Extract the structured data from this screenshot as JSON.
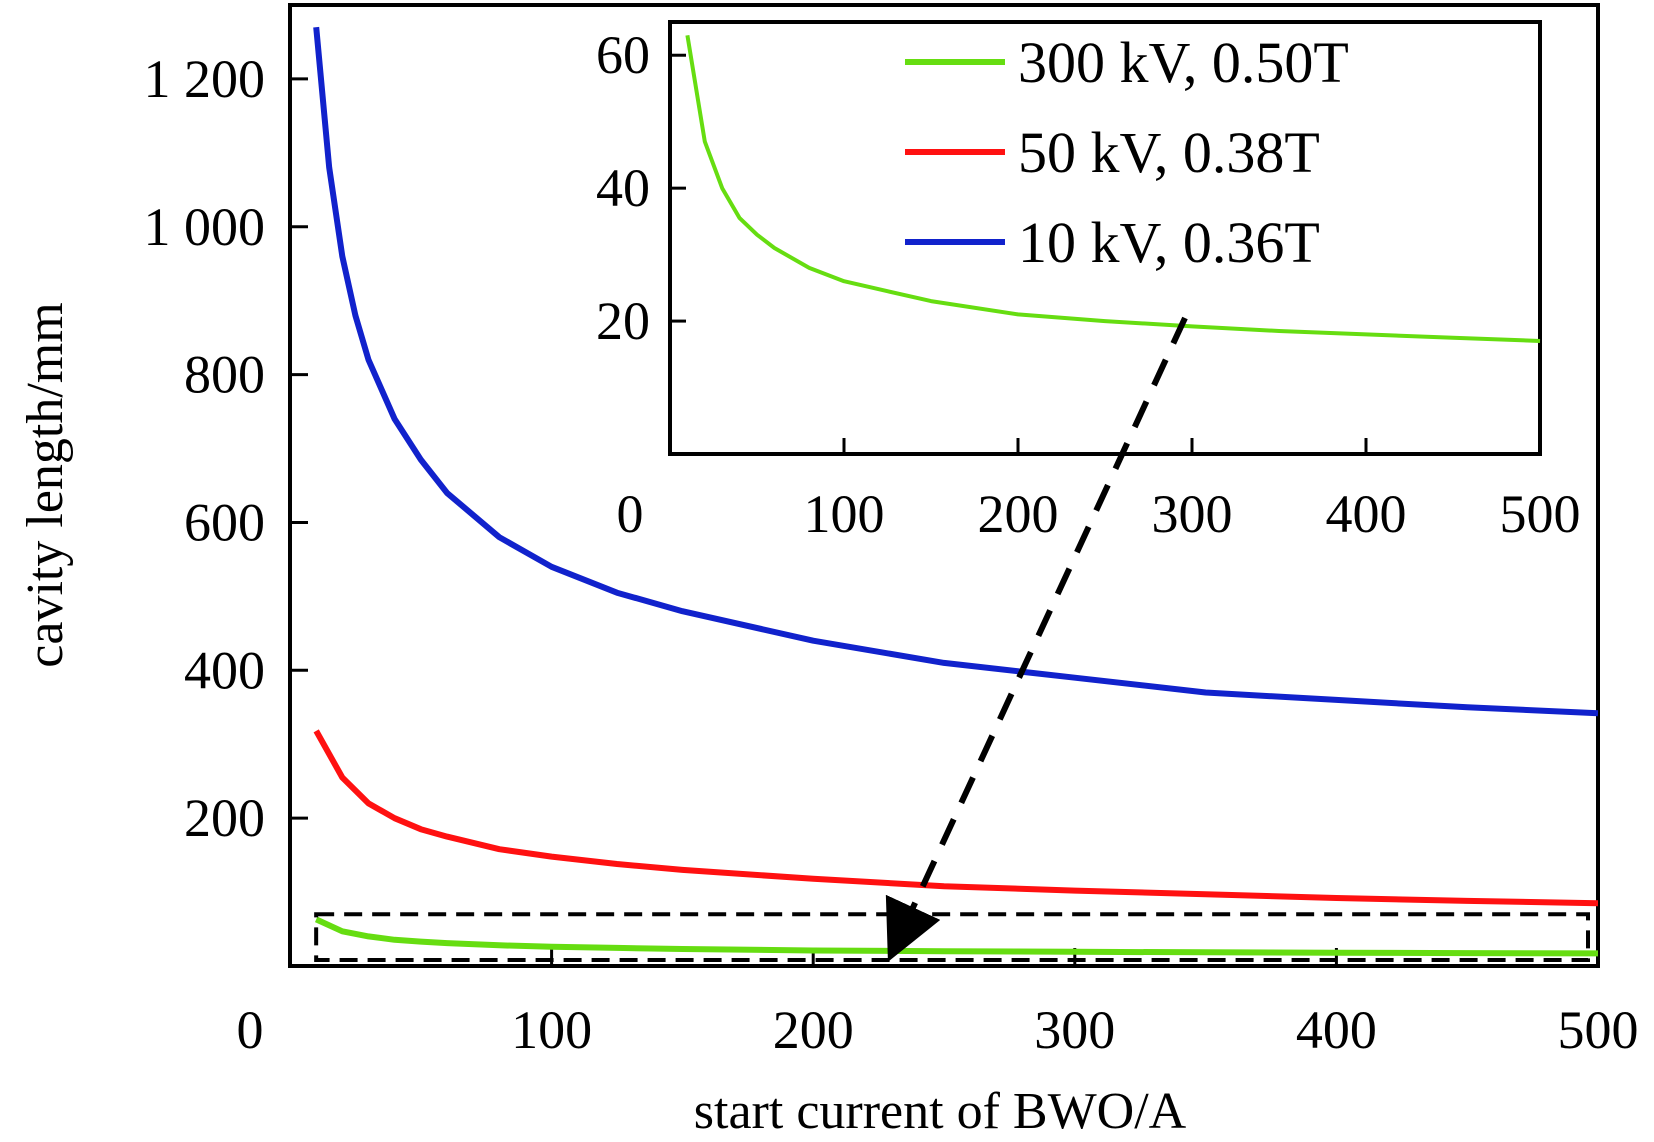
{
  "chart_data": {
    "type": "line",
    "xlabel": "start current of BWO/A",
    "ylabel": "cavity length/mm",
    "xlim": [
      0,
      500
    ],
    "ylim": [
      0,
      1300
    ],
    "x_ticks": [
      0,
      100,
      200,
      300,
      400,
      500
    ],
    "y_ticks": [
      200,
      400,
      600,
      800,
      1000,
      1200
    ],
    "x_tick_labels": [
      "0",
      "100",
      "200",
      "300",
      "400",
      "500"
    ],
    "y_tick_labels": [
      "200",
      "400",
      "600",
      "800",
      "1 000",
      "1 200"
    ],
    "series": [
      {
        "name": "300 kV, 0.50T",
        "color": "#66dd11",
        "x": [
          10,
          20,
          30,
          40,
          50,
          60,
          80,
          100,
          125,
          150,
          200,
          250,
          300,
          350,
          400,
          450,
          500
        ],
        "y": [
          63,
          47,
          40,
          35.5,
          33,
          31,
          28,
          26,
          24.5,
          23,
          21,
          20,
          19.2,
          18.5,
          18,
          17.5,
          17
        ]
      },
      {
        "name": "50 kV, 0.38T",
        "color": "#ff1111",
        "x": [
          10,
          20,
          30,
          40,
          50,
          60,
          80,
          100,
          125,
          150,
          200,
          250,
          300,
          350,
          400,
          450,
          500
        ],
        "y": [
          318,
          255,
          220,
          200,
          185,
          175,
          158,
          148,
          138,
          130,
          118,
          108,
          102,
          97,
          92,
          88,
          85
        ]
      },
      {
        "name": "10 kV, 0.36T",
        "color": "#1122cc",
        "x": [
          10,
          15,
          20,
          25,
          30,
          40,
          50,
          60,
          80,
          100,
          125,
          150,
          200,
          250,
          300,
          350,
          400,
          450,
          500
        ],
        "y": [
          1270,
          1080,
          960,
          880,
          820,
          740,
          685,
          640,
          580,
          540,
          505,
          480,
          440,
          410,
          390,
          370,
          360,
          350,
          342
        ]
      }
    ],
    "inset": {
      "xlim": [
        0,
        500
      ],
      "ylim": [
        0,
        65
      ],
      "x_ticks": [
        0,
        100,
        200,
        300,
        400,
        500
      ],
      "y_ticks": [
        20,
        40,
        60
      ],
      "x_tick_labels": [
        "0",
        "100",
        "200",
        "300",
        "400",
        "500"
      ],
      "y_tick_labels": [
        "20",
        "40",
        "60"
      ],
      "series_index": 0
    },
    "zoom_box": {
      "x": [
        10,
        500
      ],
      "y": [
        0,
        70
      ]
    },
    "legend_placement": "inside inset, top-right",
    "grid": false
  }
}
